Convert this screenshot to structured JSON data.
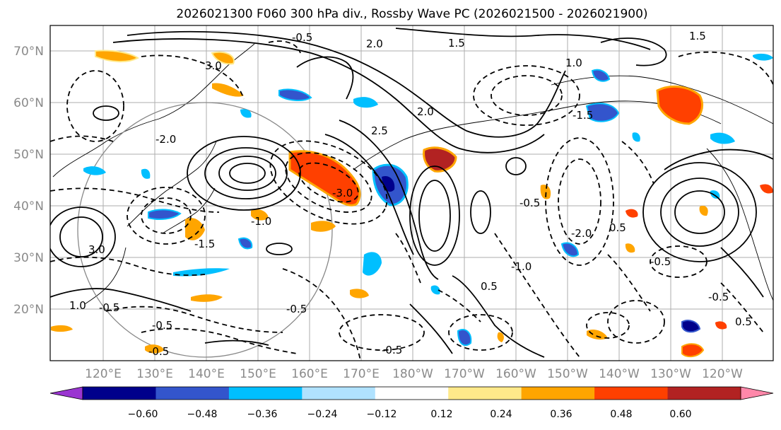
{
  "title": "2026021300 F060 300 hPa div., Rossby Wave PC (2026021500 - 2026021900)",
  "lat_labels": [
    "70°N",
    "60°N",
    "50°N",
    "40°N",
    "30°N",
    "20°N"
  ],
  "lon_labels": [
    "120°E",
    "130°E",
    "140°E",
    "150°E",
    "160°E",
    "170°E",
    "180°W",
    "170°W",
    "160°W",
    "150°W",
    "140°W",
    "130°W",
    "120°W"
  ],
  "colorbar": {
    "tick_labels": [
      "−0.60",
      "−0.48",
      "−0.36",
      "−0.24",
      "−0.12",
      "0.12",
      "0.24",
      "0.36",
      "0.48",
      "0.60"
    ],
    "colors": [
      "#9a35d1",
      "#00008b",
      "#3355cc",
      "#00bfff",
      "#b0e2ff",
      "#ffffff",
      "#ffe98a",
      "#ffa500",
      "#ff4000",
      "#b22222",
      "#ff88aa"
    ]
  },
  "contour_labels": [
    "-0.5",
    "-0.5",
    "-0.5",
    "-0.5",
    "-0.5",
    "-0.5",
    "-0.5",
    "-0.5",
    "-0.5",
    "-1.0",
    "-1.0",
    "-1.5",
    "-1.5",
    "-2.0",
    "-2.0",
    "-3.0",
    "1.5",
    "1.5",
    "2.0",
    "2.0",
    "3.0",
    "3.0",
    "1.0",
    "0.5",
    "0.5",
    "1.0",
    "2.5",
    "0.5"
  ]
}
